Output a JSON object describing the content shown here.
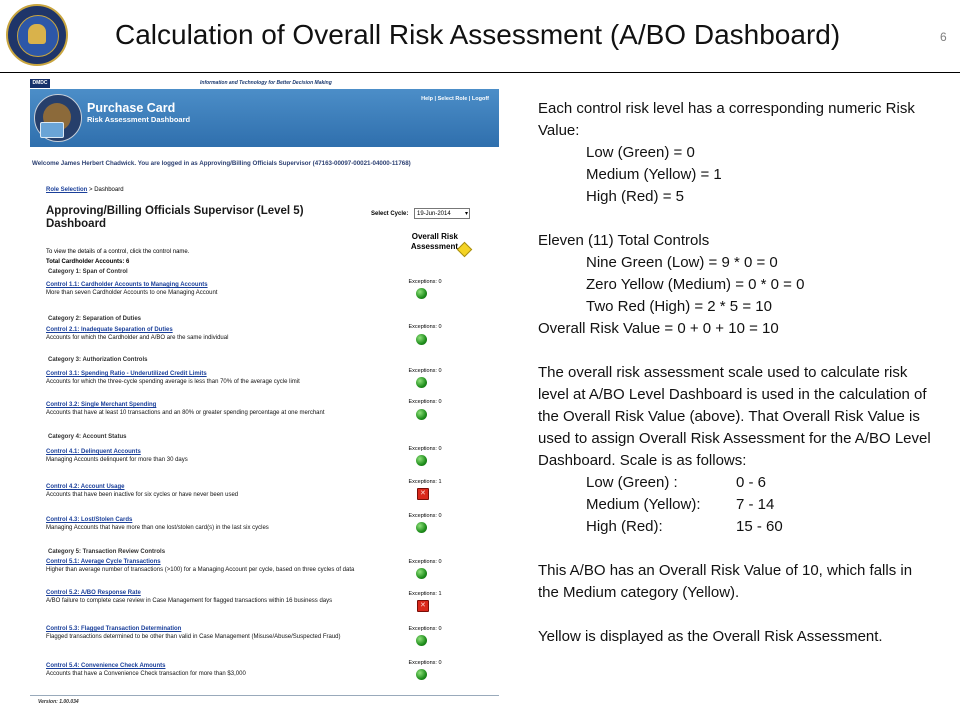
{
  "slide": {
    "title": "Calculation of Overall Risk Assessment (A/BO Dashboard)",
    "number": "6"
  },
  "app": {
    "tag_logo": "DMDC",
    "tagline": "Information and Technology for Better Decision Making",
    "title": "Purchase Card",
    "subtitle": "Risk Assessment Dashboard",
    "links": {
      "help": "Help",
      "sep1": "|",
      "select_role": "Select Role",
      "sep2": "|",
      "logoff": "Logoff"
    },
    "welcome": "Welcome James Herbert Chadwick. You are logged in as Approving/Billing Officials Supervisor (47163-00097-00021-04000-11768)",
    "breadcrumb": {
      "link": "Role Selection",
      "sep": ">",
      "current": "Dashboard"
    },
    "dashboard_title": "Approving/Billing Officials Supervisor (Level 5) Dashboard",
    "cycle_label": "Select Cycle:",
    "cycle_value": "19-Jun-2014",
    "overall_risk_label": "Overall Risk Assessment",
    "overall_risk_color": "#f4d324",
    "instruction": "To view the details of a control, click the control name.",
    "totals": "Total Cardholder Accounts: 6",
    "categories": [
      {
        "label": "Category 1: Span of Control"
      },
      {
        "label": "Category 2: Separation of Duties"
      },
      {
        "label": "Category 3: Authorization Controls"
      },
      {
        "label": "Category 4: Account Status"
      },
      {
        "label": "Category 5: Transaction Review Controls"
      }
    ],
    "controls": [
      {
        "name": "Control 1.1: Cardholder Accounts to Managing Accounts",
        "desc": "More than seven Cardholder Accounts to one Managing Account",
        "exceptions": "Exceptions: 0",
        "status": "green"
      },
      {
        "name": "Control 2.1: Inadequate Separation of Duties",
        "desc": "Accounts for which the Cardholder and A/BO are the same individual",
        "exceptions": "Exceptions: 0",
        "status": "green"
      },
      {
        "name": "Control 3.1: Spending Ratio - Underutilized Credit Limits",
        "desc": "Accounts for which the three-cycle spending average is less than 70% of the average cycle limit",
        "exceptions": "Exceptions: 0",
        "status": "green"
      },
      {
        "name": "Control 3.2: Single Merchant Spending",
        "desc": "Accounts that have at least 10 transactions and an 80% or greater spending percentage at one merchant",
        "exceptions": "Exceptions: 0",
        "status": "green"
      },
      {
        "name": "Control 4.1: Delinquent Accounts",
        "desc": "Managing Accounts delinquent for more than 30 days",
        "exceptions": "Exceptions: 0",
        "status": "green"
      },
      {
        "name": "Control 4.2: Account Usage",
        "desc": "Accounts that have been inactive for six cycles or have never been used",
        "exceptions": "Exceptions: 1",
        "status": "red"
      },
      {
        "name": "Control 4.3: Lost/Stolen Cards",
        "desc": "Managing Accounts that have more than one lost/stolen card(s) in the last six cycles",
        "exceptions": "Exceptions: 0",
        "status": "green"
      },
      {
        "name": "Control 5.1: Average Cycle Transactions",
        "desc": "Higher than average number of transactions (>100) for a Managing Account per cycle, based on three cycles of data",
        "exceptions": "Exceptions: 0",
        "status": "green"
      },
      {
        "name": "Control 5.2: A/BO Response Rate",
        "desc": "A/BO failure to complete case review in Case Management for flagged transactions within 16 business days",
        "exceptions": "Exceptions: 1",
        "status": "red"
      },
      {
        "name": "Control 5.3: Flagged Transaction Determination",
        "desc": "Flagged transactions determined to be other than valid in Case Management (Misuse/Abuse/Suspected Fraud)",
        "exceptions": "Exceptions: 0",
        "status": "green"
      },
      {
        "name": "Control 5.4: Convenience Check Amounts",
        "desc": "Accounts that have a Convenience Check transaction for more than $3,000",
        "exceptions": "Exceptions: 0",
        "status": "green"
      }
    ],
    "version": "Version: 1.00.034"
  },
  "explanation": {
    "intro": "Each control risk level has a corresponding numeric Risk Value:",
    "levels": [
      "Low (Green)  = 0",
      "Medium (Yellow) = 1",
      "High (Red) = 5"
    ],
    "total_heading": "Eleven (11) Total Controls",
    "calc": [
      "Nine Green (Low) = 9 * 0 = 0",
      "Zero Yellow (Medium) = 0 * 0 = 0",
      "Two Red (High) = 2 * 5 = 10"
    ],
    "overall": "Overall Risk Value = 0 + 0 + 10 = 10",
    "scale_text": "The overall risk assessment scale used to calculate risk level at A/BO Level Dashboard is used in the calculation of the Overall Risk Value (above).  That Overall Risk Value is used to assign Overall Risk Assessment for the A/BO Level Dashboard.  Scale is as follows:",
    "scale": [
      {
        "label": "Low (Green) :",
        "range": "0 - 6"
      },
      {
        "label": "Medium (Yellow):",
        "range": "7 - 14"
      },
      {
        "label": "High (Red):",
        "range": "15 - 60"
      }
    ],
    "result": "This A/BO has an Overall Risk Value of 10, which falls in the Medium category (Yellow).",
    "conclusion": "Yellow is displayed as the Overall Risk Assessment."
  }
}
